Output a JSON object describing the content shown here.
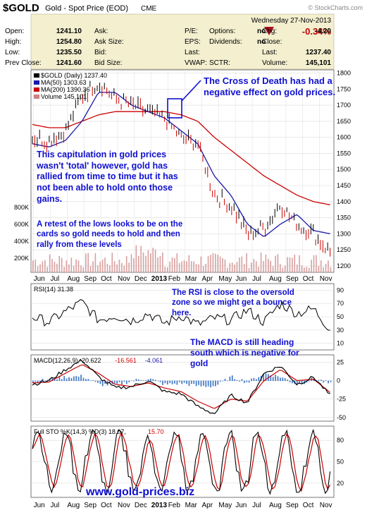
{
  "header": {
    "symbol": "$GOLD",
    "name": "Gold - Spot Price (EOD)",
    "exchange": "CME",
    "watermark": "© StockCharts.com",
    "date": "Wednesday   27-Nov-2013",
    "change_pct": "-0.34%",
    "quote": [
      [
        [
          "Open:",
          "1241.10"
        ],
        [
          "Ask:",
          ""
        ],
        [
          "P/E:",
          ""
        ],
        [
          "Options:",
          "no"
        ],
        [
          "Chg:",
          "-4.20"
        ]
      ],
      [
        [
          "High:",
          "1254.80"
        ],
        [
          "Ask Size:",
          ""
        ],
        [
          "EPS:",
          ""
        ],
        [
          "Dividends:",
          "no"
        ],
        [
          "Close:",
          ""
        ]
      ],
      [
        [
          "Low:",
          "1235.50"
        ],
        [
          "Bid:",
          ""
        ],
        [
          "Last:",
          ""
        ],
        [
          "",
          ""
        ],
        [
          "Last:",
          "1237.40"
        ]
      ],
      [
        [
          "Prev Close:",
          "1241.60"
        ],
        [
          "Bid Size:",
          ""
        ],
        [
          "VWAP:",
          ""
        ],
        [
          "SCTR:",
          ""
        ],
        [
          "Volume:",
          "145,101"
        ]
      ]
    ]
  },
  "colors": {
    "price_bar": "#000000",
    "down_bar": "#cc0000",
    "ma50": "#1a1aa8",
    "ma200": "#cc0000",
    "volume": "#d08080",
    "rsi": "#000000",
    "panel_bg": "#ffffff",
    "annotation": "#1010d0"
  },
  "chart_data": [
    {
      "type": "line",
      "panel": "price",
      "legend": [
        "$GOLD (Daily) 1237.40",
        "MA(50) 1303.63",
        "MA(200) 1390.36",
        "Volume 145,101"
      ],
      "x_ticks": [
        "Jun",
        "Jul",
        "Aug",
        "Sep",
        "Oct",
        "Nov",
        "Dec",
        "2013",
        "Feb",
        "Mar",
        "Apr",
        "May",
        "Jun",
        "Jul",
        "Aug",
        "Sep",
        "Oct",
        "Nov"
      ],
      "y_ticks": [
        1200,
        1250,
        1300,
        1350,
        1400,
        1450,
        1500,
        1550,
        1600,
        1650,
        1700,
        1750,
        1800
      ],
      "ylim": [
        1180,
        1810
      ],
      "volume_ticks": [
        "200K",
        "400K",
        "600K",
        "800K"
      ],
      "price_monthly": [
        1600,
        1590,
        1620,
        1730,
        1770,
        1720,
        1700,
        1680,
        1660,
        1600,
        1580,
        1420,
        1390,
        1300,
        1320,
        1390,
        1330,
        1300,
        1240
      ],
      "ma50_monthly": [
        1580,
        1570,
        1590,
        1650,
        1740,
        1740,
        1700,
        1680,
        1660,
        1620,
        1580,
        1480,
        1420,
        1330,
        1290,
        1330,
        1360,
        1310,
        1300
      ],
      "ma200_monthly": [
        1640,
        1630,
        1630,
        1650,
        1670,
        1680,
        1680,
        1680,
        1680,
        1670,
        1650,
        1600,
        1560,
        1520,
        1480,
        1450,
        1420,
        1400,
        1390
      ]
    },
    {
      "type": "line",
      "panel": "rsi",
      "legend": "RSI(14) 31.38",
      "y_ticks": [
        10,
        30,
        50,
        70,
        90
      ],
      "ylim": [
        0,
        100
      ],
      "monthly": [
        50,
        42,
        58,
        72,
        45,
        52,
        44,
        55,
        40,
        52,
        38,
        48,
        45,
        60,
        42,
        70,
        55,
        62,
        31
      ]
    },
    {
      "type": "line",
      "panel": "macd",
      "legend": [
        "MACD(12,26,9) -20.622",
        "-16.561",
        "-4.061"
      ],
      "y_ticks": [
        -50,
        -25,
        0,
        25
      ],
      "ylim": [
        -55,
        35
      ],
      "macd_monthly": [
        -5,
        0,
        15,
        28,
        5,
        -10,
        -8,
        0,
        -15,
        -18,
        -35,
        -45,
        -20,
        -30,
        10,
        20,
        -5,
        5,
        -20
      ],
      "signal_monthly": [
        -3,
        -2,
        10,
        22,
        10,
        -5,
        -8,
        -3,
        -10,
        -15,
        -28,
        -38,
        -25,
        -28,
        0,
        15,
        0,
        2,
        -16
      ]
    },
    {
      "type": "line",
      "panel": "stochastic",
      "legend": [
        "Full STO %K(14,3) %D(3) 18.07,",
        "15.70"
      ],
      "y_ticks": [
        20,
        50,
        80
      ],
      "ylim": [
        0,
        100
      ],
      "k_monthly": [
        60,
        20,
        80,
        90,
        30,
        70,
        20,
        60,
        10,
        70,
        20,
        85,
        30,
        80,
        25,
        90,
        30,
        70,
        18
      ]
    }
  ],
  "annotations": {
    "cross": "The Cross of Death has had a negative effect on gold prices.",
    "capitulation": "This capitulation in gold prices wasn't 'total' however, gold has rallied from time to time but it has not been able to hold onto those gains.",
    "retest": "A retest of the lows looks to be on the cards so gold needs to hold and then rally from these levels",
    "rsi": "The RSI is close to the oversold zone so we might get a bounce here.",
    "macd": "The MACD is still heading south which is negative for gold",
    "website": "www.gold-prices.biz"
  }
}
